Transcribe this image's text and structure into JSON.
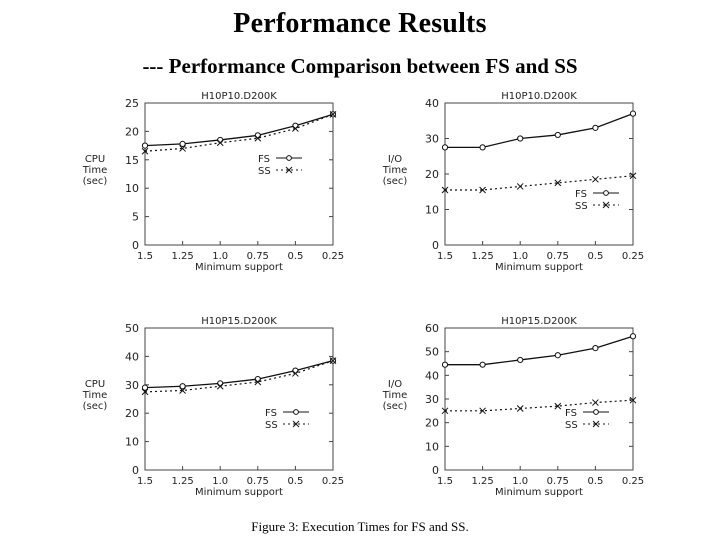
{
  "slide": {
    "title": "Performance Results",
    "subtitle": "--- Performance Comparison between FS and SS",
    "caption": "Figure 3: Execution Times for FS and SS."
  },
  "chart_data": [
    {
      "type": "line",
      "title": "H10P10.D200K",
      "ylabel": "CPU Time (sec)",
      "ylabel_lines": [
        "CPU",
        "Time",
        "(sec)"
      ],
      "xlabel": "Minimum support",
      "x": [
        "1.5",
        "1.25",
        "1.0",
        "0.75",
        "0.5",
        "0.25"
      ],
      "yticks": [
        "0",
        "5",
        "10",
        "15",
        "20",
        "25"
      ],
      "ylim": [
        0,
        25
      ],
      "legend_position": "upper-right",
      "series": [
        {
          "name": "FS",
          "values": [
            17.5,
            17.8,
            18.5,
            19.3,
            21.0,
            23.0
          ],
          "style": "solid",
          "marker": "circle"
        },
        {
          "name": "SS",
          "values": [
            16.5,
            17.0,
            18.0,
            18.8,
            20.5,
            23.0
          ],
          "style": "dotted",
          "marker": "x"
        }
      ]
    },
    {
      "type": "line",
      "title": "H10P10.D200K",
      "ylabel": "I/O Time (sec)",
      "ylabel_lines": [
        "I/O",
        "Time",
        "(sec)"
      ],
      "xlabel": "Minimum support",
      "x": [
        "1.5",
        "1.25",
        "1.0",
        "0.75",
        "0.5",
        "0.25"
      ],
      "yticks": [
        "0",
        "10",
        "20",
        "30",
        "40"
      ],
      "ylim": [
        0,
        40
      ],
      "legend_position": "right",
      "series": [
        {
          "name": "FS",
          "values": [
            27.5,
            27.5,
            30.0,
            31.0,
            33.0,
            37.0
          ],
          "style": "solid",
          "marker": "circle"
        },
        {
          "name": "SS",
          "values": [
            15.5,
            15.5,
            16.5,
            17.5,
            18.5,
            19.5
          ],
          "style": "dotted",
          "marker": "x"
        }
      ]
    },
    {
      "type": "line",
      "title": "H10P15.D200K",
      "ylabel": "CPU Time (sec)",
      "ylabel_lines": [
        "CPU",
        "Time",
        "(sec)"
      ],
      "xlabel": "Minimum support",
      "x": [
        "1.5",
        "1.25",
        "1.0",
        "0.75",
        "0.5",
        "0.25"
      ],
      "yticks": [
        "0",
        "10",
        "20",
        "30",
        "40",
        "50"
      ],
      "ylim": [
        0,
        50
      ],
      "legend_position": "lower-right",
      "series": [
        {
          "name": "FS",
          "values": [
            29.0,
            29.5,
            30.5,
            32.0,
            35.0,
            38.5
          ],
          "style": "solid",
          "marker": "circle"
        },
        {
          "name": "SS",
          "values": [
            27.5,
            28.0,
            29.5,
            31.0,
            34.0,
            38.5
          ],
          "style": "dotted",
          "marker": "x"
        }
      ]
    },
    {
      "type": "line",
      "title": "H10P15.D200K",
      "ylabel": "I/O Time (sec)",
      "ylabel_lines": [
        "I/O",
        "Time",
        "(sec)"
      ],
      "xlabel": "Minimum support",
      "x": [
        "1.5",
        "1.25",
        "1.0",
        "0.75",
        "0.5",
        "0.25"
      ],
      "yticks": [
        "0",
        "10",
        "20",
        "30",
        "40",
        "50",
        "60"
      ],
      "ylim": [
        0,
        60
      ],
      "legend_position": "lower-right",
      "series": [
        {
          "name": "FS",
          "values": [
            44.5,
            44.5,
            46.5,
            48.5,
            51.5,
            56.5
          ],
          "style": "solid",
          "marker": "circle"
        },
        {
          "name": "SS",
          "values": [
            25.0,
            25.0,
            26.0,
            27.0,
            28.5,
            29.5
          ],
          "style": "dotted",
          "marker": "x"
        }
      ]
    }
  ]
}
